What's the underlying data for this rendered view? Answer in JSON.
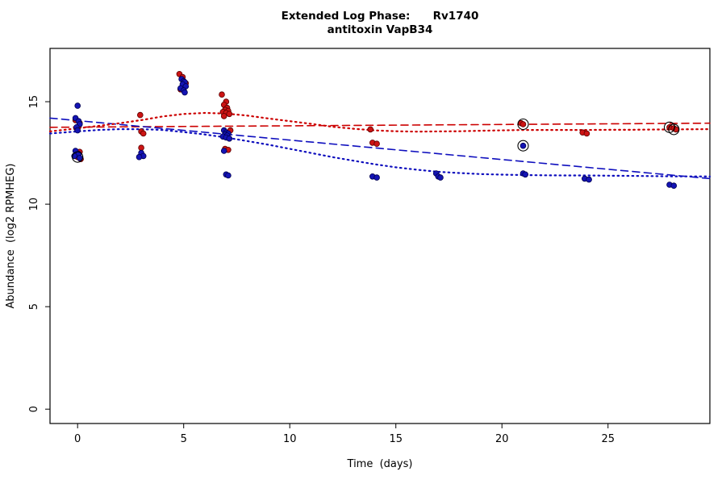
{
  "title": {
    "line1": "Extended Log Phase:      Rv1740",
    "line2": "antitoxin VapB34"
  },
  "chart_data": {
    "type": "scatter",
    "title": "Extended Log Phase: Rv1740 antitoxin VapB34",
    "xlabel": "Time  (days)",
    "ylabel": "Abundance  (log2 RPMHEG)",
    "xlim": [
      -1.3,
      29.8
    ],
    "ylim": [
      -0.7,
      17.6
    ],
    "xticks": [
      0,
      5,
      10,
      15,
      20,
      25
    ],
    "yticks": [
      0,
      5,
      10,
      15
    ],
    "grid": false,
    "legend": "none",
    "colors": {
      "red": "#cc0000",
      "blue": "#0f0fbe"
    },
    "series": [
      {
        "name": "red-points",
        "color": "#cc1414",
        "stroke": "#5a0000",
        "points": [
          [
            -0.1,
            14.1
          ],
          [
            0.1,
            13.95
          ],
          [
            0.05,
            13.8
          ],
          [
            -0.05,
            13.7
          ],
          [
            0.1,
            12.55
          ],
          [
            -0.1,
            12.4
          ],
          [
            0.0,
            12.3
          ],
          [
            0.15,
            12.2
          ],
          [
            2.95,
            14.35
          ],
          [
            3.0,
            13.55
          ],
          [
            3.1,
            13.45
          ],
          [
            3.0,
            12.75
          ],
          [
            4.8,
            16.35
          ],
          [
            4.95,
            16.2
          ],
          [
            5.1,
            15.9
          ],
          [
            4.85,
            15.6
          ],
          [
            6.8,
            15.35
          ],
          [
            7.0,
            15.0
          ],
          [
            6.9,
            14.85
          ],
          [
            7.05,
            14.7
          ],
          [
            6.95,
            14.6
          ],
          [
            7.1,
            14.55
          ],
          [
            6.85,
            14.5
          ],
          [
            7.0,
            14.45
          ],
          [
            7.15,
            14.4
          ],
          [
            6.9,
            14.3
          ],
          [
            7.2,
            13.6
          ],
          [
            6.95,
            12.7
          ],
          [
            7.1,
            12.65
          ],
          [
            13.8,
            13.65
          ],
          [
            13.9,
            13.0
          ],
          [
            14.1,
            12.95
          ],
          [
            20.9,
            13.95
          ],
          [
            21.0,
            13.9
          ],
          [
            23.8,
            13.5
          ],
          [
            24.0,
            13.45
          ],
          [
            27.9,
            13.75
          ],
          [
            28.1,
            13.7
          ],
          [
            28.2,
            13.65
          ]
        ]
      },
      {
        "name": "blue-points",
        "color": "#1414b4",
        "stroke": "#000050",
        "points": [
          [
            0.0,
            14.8
          ],
          [
            -0.1,
            14.2
          ],
          [
            0.05,
            14.05
          ],
          [
            0.1,
            13.9
          ],
          [
            -0.05,
            13.75
          ],
          [
            0.0,
            13.6
          ],
          [
            -0.1,
            12.6
          ],
          [
            0.05,
            12.45
          ],
          [
            -0.15,
            12.35
          ],
          [
            0.1,
            12.25
          ],
          [
            3.0,
            12.5
          ],
          [
            3.1,
            12.35
          ],
          [
            2.9,
            12.3
          ],
          [
            4.9,
            16.1
          ],
          [
            5.0,
            16.0
          ],
          [
            5.05,
            15.95
          ],
          [
            4.95,
            15.85
          ],
          [
            5.1,
            15.75
          ],
          [
            4.85,
            15.65
          ],
          [
            5.0,
            15.55
          ],
          [
            5.05,
            15.45
          ],
          [
            6.9,
            13.6
          ],
          [
            7.0,
            13.5
          ],
          [
            7.1,
            13.45
          ],
          [
            6.95,
            13.4
          ],
          [
            7.05,
            13.35
          ],
          [
            6.85,
            13.3
          ],
          [
            7.0,
            13.25
          ],
          [
            7.15,
            13.2
          ],
          [
            6.9,
            12.6
          ],
          [
            7.0,
            11.45
          ],
          [
            7.1,
            11.4
          ],
          [
            13.9,
            11.35
          ],
          [
            14.1,
            11.3
          ],
          [
            16.9,
            11.5
          ],
          [
            17.0,
            11.35
          ],
          [
            17.1,
            11.3
          ],
          [
            21.0,
            12.85
          ],
          [
            21.0,
            11.5
          ],
          [
            21.1,
            11.45
          ],
          [
            23.9,
            11.25
          ],
          [
            24.1,
            11.2
          ],
          [
            27.9,
            10.95
          ],
          [
            28.1,
            10.9
          ]
        ]
      }
    ],
    "circled_points": [
      [
        0.0,
        12.3
      ],
      [
        21.0,
        13.9
      ],
      [
        21.0,
        12.85
      ],
      [
        27.9,
        13.75
      ],
      [
        28.1,
        13.65
      ]
    ],
    "lines": [
      {
        "name": "red-dashed-fit-line",
        "color": "#cc0000",
        "style": "dashed",
        "points": [
          [
            -1.3,
            13.75
          ],
          [
            29.8,
            13.95
          ]
        ]
      },
      {
        "name": "blue-dashed-fit-line",
        "color": "#0f0fbe",
        "style": "dashed",
        "points": [
          [
            -1.3,
            14.2
          ],
          [
            29.8,
            11.25
          ]
        ]
      },
      {
        "name": "red-dotted-smooth-line",
        "color": "#cc0000",
        "style": "dotted",
        "points": [
          [
            -1.3,
            13.55
          ],
          [
            0,
            13.7
          ],
          [
            1,
            13.82
          ],
          [
            2,
            13.95
          ],
          [
            3,
            14.1
          ],
          [
            4,
            14.28
          ],
          [
            5,
            14.4
          ],
          [
            6,
            14.45
          ],
          [
            7,
            14.42
          ],
          [
            8,
            14.32
          ],
          [
            9,
            14.18
          ],
          [
            10,
            14.05
          ],
          [
            11,
            13.92
          ],
          [
            12,
            13.78
          ],
          [
            13,
            13.68
          ],
          [
            14,
            13.6
          ],
          [
            15,
            13.56
          ],
          [
            16,
            13.54
          ],
          [
            17,
            13.55
          ],
          [
            18,
            13.56
          ],
          [
            19,
            13.58
          ],
          [
            20,
            13.6
          ],
          [
            21,
            13.62
          ],
          [
            22,
            13.62
          ],
          [
            23,
            13.62
          ],
          [
            24,
            13.62
          ],
          [
            25,
            13.63
          ],
          [
            26,
            13.63
          ],
          [
            27,
            13.64
          ],
          [
            28,
            13.65
          ],
          [
            29.8,
            13.66
          ]
        ]
      },
      {
        "name": "blue-dotted-smooth-line",
        "color": "#0f0fbe",
        "style": "dotted",
        "points": [
          [
            -1.3,
            13.45
          ],
          [
            0,
            13.55
          ],
          [
            1,
            13.62
          ],
          [
            2,
            13.66
          ],
          [
            3,
            13.66
          ],
          [
            4,
            13.62
          ],
          [
            5,
            13.52
          ],
          [
            6,
            13.4
          ],
          [
            7,
            13.25
          ],
          [
            8,
            13.08
          ],
          [
            9,
            12.9
          ],
          [
            10,
            12.7
          ],
          [
            11,
            12.5
          ],
          [
            12,
            12.3
          ],
          [
            13,
            12.12
          ],
          [
            14,
            11.95
          ],
          [
            15,
            11.8
          ],
          [
            16,
            11.68
          ],
          [
            17,
            11.58
          ],
          [
            18,
            11.52
          ],
          [
            19,
            11.47
          ],
          [
            20,
            11.44
          ],
          [
            21,
            11.42
          ],
          [
            22,
            11.41
          ],
          [
            23,
            11.4
          ],
          [
            24,
            11.4
          ],
          [
            25,
            11.39
          ],
          [
            26,
            11.38
          ],
          [
            27,
            11.37
          ],
          [
            28,
            11.36
          ],
          [
            29.8,
            11.35
          ]
        ]
      }
    ]
  }
}
